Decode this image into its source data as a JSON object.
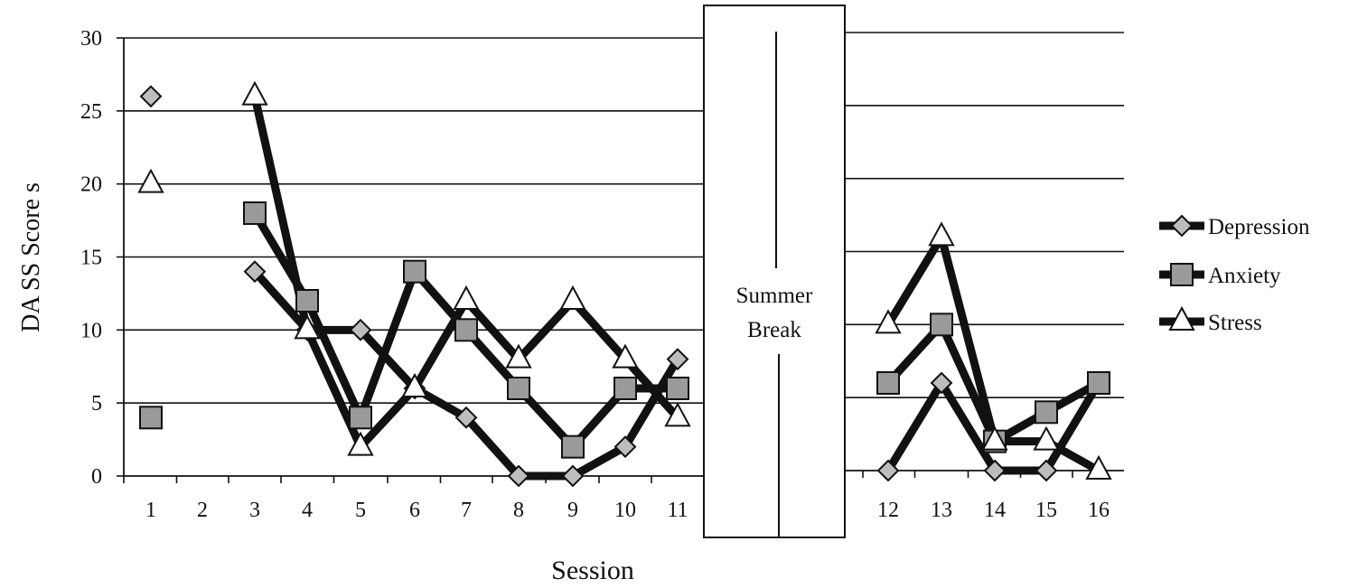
{
  "chart_data": {
    "type": "line",
    "title": "",
    "xlabel": "Session",
    "ylabel": "DA SS Score s",
    "ylim": [
      0,
      30
    ],
    "yticks": [
      0,
      5,
      10,
      15,
      20,
      25,
      30
    ],
    "grid": true,
    "legend_position": "right",
    "break_label_1": "Summer",
    "break_label_2": "Break",
    "categories": [
      "1",
      "2",
      "3",
      "4",
      "5",
      "6",
      "7",
      "8",
      "9",
      "10",
      "11",
      "12",
      "13",
      "14",
      "15",
      "16"
    ],
    "series": [
      {
        "name": "Depression",
        "marker": "diamond",
        "values": [
          26,
          null,
          14,
          10,
          10,
          6,
          4,
          0,
          0,
          2,
          8,
          0,
          6,
          0,
          0,
          6
        ]
      },
      {
        "name": "Anxiety",
        "marker": "square",
        "values": [
          4,
          null,
          18,
          12,
          4,
          14,
          10,
          6,
          2,
          6,
          6,
          6,
          10,
          2,
          4,
          6
        ]
      },
      {
        "name": "Stress",
        "marker": "triangle",
        "values": [
          20,
          null,
          26,
          10,
          2,
          6,
          12,
          8,
          12,
          8,
          4,
          10,
          16,
          2,
          2,
          0
        ]
      }
    ]
  }
}
